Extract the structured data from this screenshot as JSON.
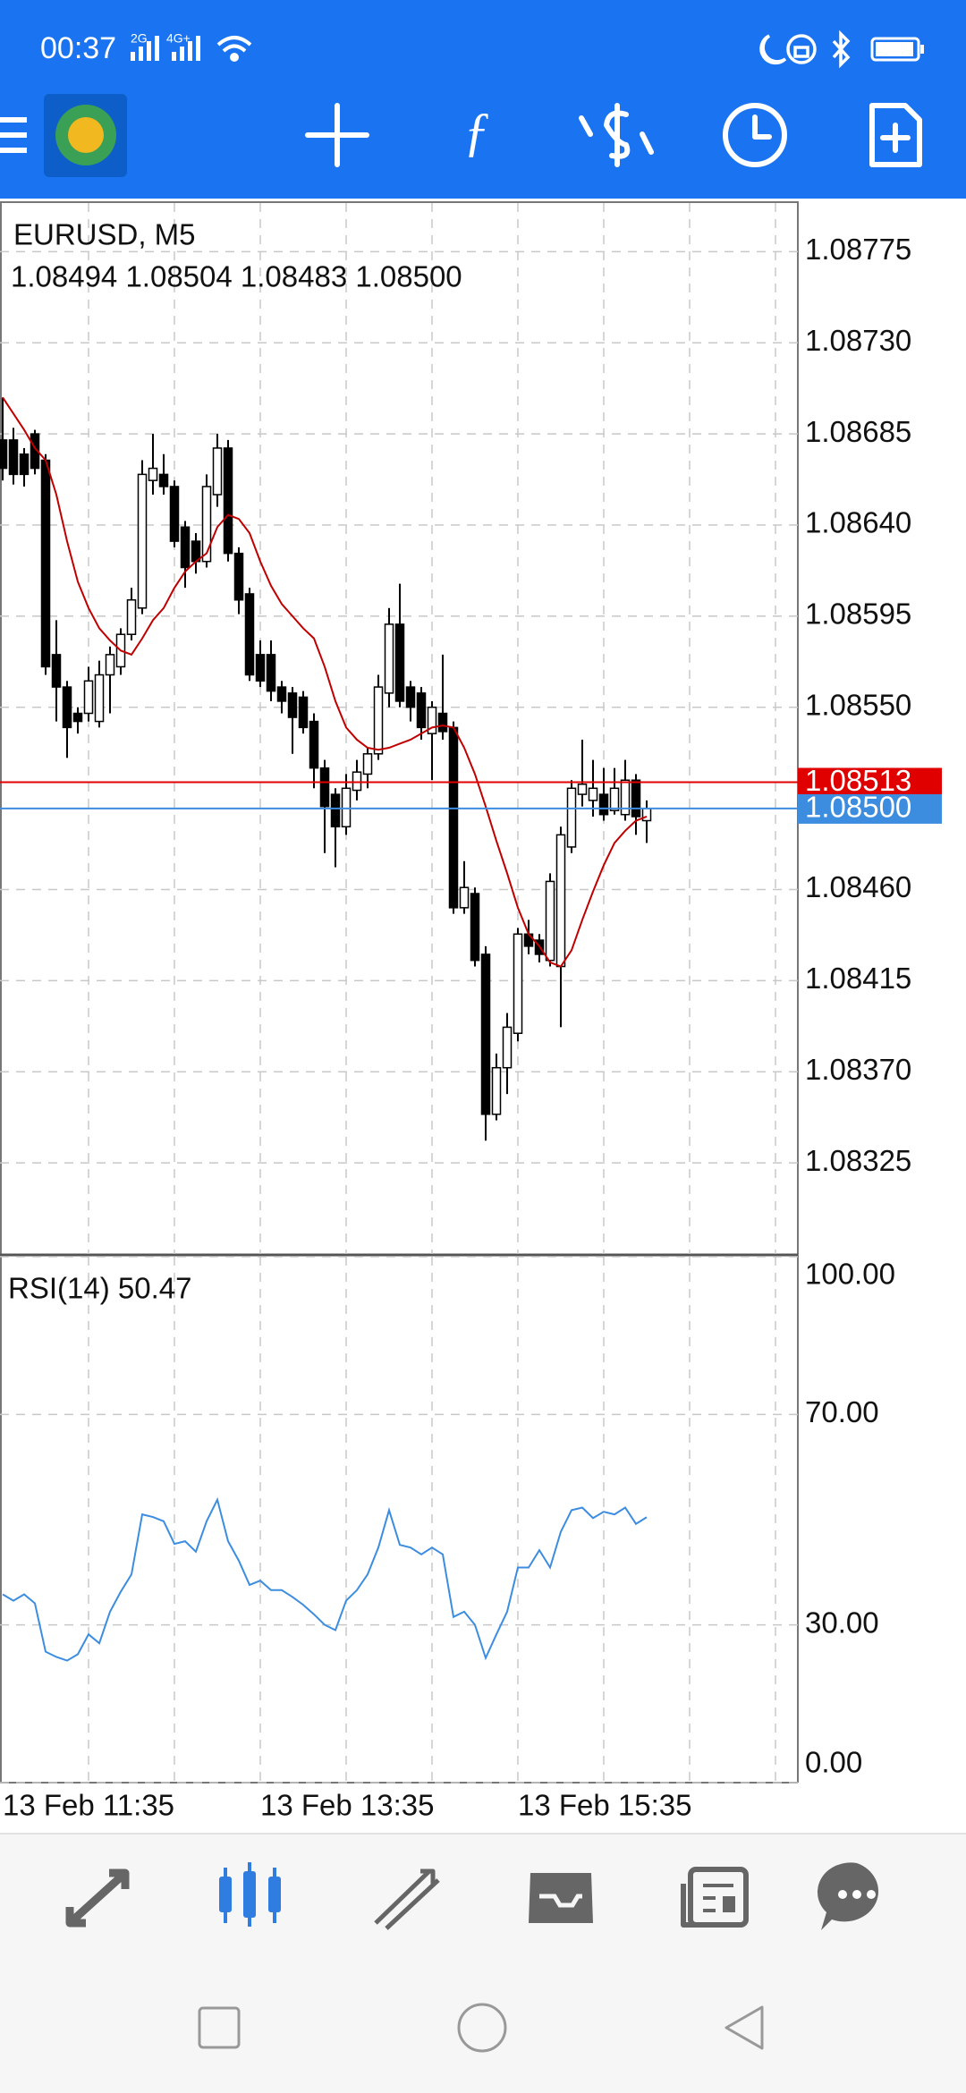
{
  "status_bar": {
    "time": "00:37",
    "net1": "2G",
    "net2": "4G+"
  },
  "chart_data": [
    {
      "type": "candlestick",
      "title": "EURUSD, M5",
      "subtitle": "1.08494 1.08504 1.08483 1.08500",
      "ylim": [
        1.0828,
        1.08799
      ],
      "yticks": [
        1.08775,
        {
          "value": 1.0873,
          "label": "1.08730"
        },
        1.08685,
        {
          "value": 1.0864,
          "label": "1.08640"
        },
        1.08595,
        {
          "value": 1.0855,
          "label": "1.08550"
        },
        {
          "value": 1.0846,
          "label": "1.08460"
        },
        1.08415,
        {
          "value": 1.0837,
          "label": "1.08370"
        },
        1.08325
      ],
      "grid": true,
      "up_color": "#ffffff",
      "down_color": "#000000",
      "open": [
        1.08682,
        1.08682,
        1.08675,
        1.08685,
        1.08672,
        1.08576,
        1.0856,
        1.08547,
        1.08547,
        1.08543,
        1.08566,
        1.0857,
        1.08586,
        1.08599,
        1.08662,
        1.08665,
        1.08659,
        1.08639,
        1.08632,
        1.08622,
        1.08655,
        1.08678,
        1.08626,
        1.08606,
        1.08576,
        1.08576,
        1.0856,
        1.08557,
        1.08555,
        1.08543,
        1.0852,
        1.08507,
        1.08491,
        1.08509,
        1.08517,
        1.08527,
        1.08557,
        1.08591,
        1.0856,
        1.08557,
        1.08537,
        1.08547,
        1.0854,
        1.08451,
        1.08458,
        1.08428,
        1.08349,
        1.08372,
        1.08389,
        1.08438,
        1.08435,
        1.08425,
        1.08422,
        1.08481,
        1.08507,
        1.08504,
        1.08507,
        1.08499,
        1.08497,
        1.08514,
        1.08494
      ],
      "high": [
        1.08703,
        1.08688,
        1.08678,
        1.08687,
        1.08675,
        1.08593,
        1.08563,
        1.0855,
        1.0857,
        1.08573,
        1.0858,
        1.08589,
        1.08609,
        1.08672,
        1.08685,
        1.08675,
        1.08662,
        1.08642,
        1.08636,
        1.08665,
        1.08685,
        1.08682,
        1.08629,
        1.08609,
        1.08583,
        1.08583,
        1.08563,
        1.0856,
        1.08558,
        1.08547,
        1.08524,
        1.0851,
        1.08517,
        1.08524,
        1.0853,
        1.08566,
        1.08599,
        1.08611,
        1.08563,
        1.0856,
        1.08553,
        1.08576,
        1.08543,
        1.08474,
        1.08461,
        1.08432,
        1.08379,
        1.08399,
        1.08441,
        1.08445,
        1.08438,
        1.08468,
        1.08491,
        1.08514,
        1.08534,
        1.08524,
        1.0852,
        1.0852,
        1.08524,
        1.08517,
        1.08504
      ],
      "low": [
        1.08662,
        1.0866,
        1.08659,
        1.08665,
        1.08566,
        1.08543,
        1.08525,
        1.08537,
        1.08543,
        1.0854,
        1.08547,
        1.08566,
        1.08583,
        1.08596,
        1.08655,
        1.08655,
        1.08629,
        1.08609,
        1.08616,
        1.08619,
        1.08649,
        1.08622,
        1.08596,
        1.08563,
        1.0856,
        1.08553,
        1.08547,
        1.08527,
        1.08537,
        1.0851,
        1.08478,
        1.08471,
        1.08487,
        1.08504,
        1.0851,
        1.08524,
        1.0855,
        1.0855,
        1.08543,
        1.08534,
        1.08514,
        1.08534,
        1.08448,
        1.08448,
        1.08422,
        1.08336,
        1.08346,
        1.08359,
        1.08385,
        1.08428,
        1.08424,
        1.08422,
        1.08392,
        1.08478,
        1.08501,
        1.08496,
        1.08494,
        1.08497,
        1.08494,
        1.08487,
        1.08483
      ],
      "close": [
        1.08668,
        1.08665,
        1.08665,
        1.08668,
        1.0857,
        1.0856,
        1.0854,
        1.08543,
        1.08563,
        1.08566,
        1.08576,
        1.08586,
        1.08603,
        1.08665,
        1.08668,
        1.08659,
        1.08632,
        1.08619,
        1.08622,
        1.08659,
        1.08678,
        1.08626,
        1.08603,
        1.08566,
        1.08563,
        1.08558,
        1.08553,
        1.08545,
        1.0854,
        1.0852,
        1.08501,
        1.08491,
        1.0851,
        1.08518,
        1.08527,
        1.0856,
        1.08591,
        1.08553,
        1.0855,
        1.0854,
        1.0855,
        1.08538,
        1.08451,
        1.08461,
        1.08425,
        1.08349,
        1.08372,
        1.08392,
        1.08438,
        1.08432,
        1.08428,
        1.08464,
        1.08487,
        1.0851,
        1.08512,
        1.0851,
        1.08497,
        1.0851,
        1.08514,
        1.08496,
        1.085
      ],
      "ma": {
        "color": "#c00000",
        "values": [
          1.08703,
          1.08695,
          1.08687,
          1.08678,
          1.08672,
          1.08655,
          1.08632,
          1.08612,
          1.08599,
          1.08589,
          1.08583,
          1.08578,
          1.08576,
          1.08584,
          1.08593,
          1.08599,
          1.08609,
          1.08617,
          1.08622,
          1.08626,
          1.08639,
          1.08645,
          1.08643,
          1.08636,
          1.08622,
          1.0861,
          1.08601,
          1.08595,
          1.08589,
          1.08584,
          1.0857,
          1.08553,
          1.0854,
          1.08534,
          1.0853,
          1.08529,
          1.0853,
          1.08532,
          1.08534,
          1.08537,
          1.0854,
          1.08541,
          1.0854,
          1.0853,
          1.08517,
          1.08501,
          1.08484,
          1.08468,
          1.08451,
          1.08438,
          1.08432,
          1.08424,
          1.08422,
          1.0843,
          1.08445,
          1.08459,
          1.08472,
          1.08483,
          1.08489,
          1.08494,
          1.08496
        ]
      },
      "price_lines": [
        {
          "value": 1.08513,
          "color": "#e00000"
        },
        {
          "value": 1.085,
          "label": "1.08500",
          "color": "#3c8de0"
        }
      ]
    },
    {
      "type": "line",
      "title": "RSI(14) 50.47",
      "color": "#3c8de0",
      "ylim": [
        0,
        100
      ],
      "yticks": [
        {
          "value": 100,
          "label": "100.00"
        },
        {
          "value": 70,
          "label": "70.00"
        },
        {
          "value": 30,
          "label": "30.00"
        },
        {
          "value": 0,
          "label": "0.00"
        }
      ],
      "grid": true,
      "categories": [
        "13 Feb 11:35",
        null,
        null,
        null,
        null,
        null,
        null,
        null,
        null,
        null,
        null,
        null,
        null,
        null,
        null,
        null,
        null,
        null,
        null,
        null,
        null,
        null,
        null,
        null,
        "13 Feb 13:35",
        null,
        null,
        null,
        null,
        null,
        null,
        null,
        null,
        null,
        null,
        null,
        null,
        null,
        null,
        null,
        null,
        null,
        null,
        null,
        null,
        null,
        null,
        null,
        "13 Feb 15:35",
        null,
        null,
        null,
        null,
        null,
        null,
        null,
        null,
        null,
        null,
        null,
        null
      ],
      "values": [
        35.8,
        34.6,
        35.8,
        34.1,
        24.9,
        23.9,
        23.2,
        24.4,
        28.2,
        26.5,
        32.5,
        36.3,
        39.6,
        51,
        50.5,
        49.7,
        45.4,
        45.9,
        43.9,
        49.7,
        53.8,
        45.9,
        42.2,
        37.6,
        38.4,
        36.6,
        36.6,
        35.3,
        33.8,
        32,
        30,
        29,
        34.6,
        36.6,
        39.6,
        44.7,
        51.8,
        45.2,
        44.7,
        43.4,
        44.7,
        43.4,
        31.5,
        32.5,
        30,
        23.7,
        28.2,
        32.5,
        40.9,
        40.9,
        44.2,
        40.9,
        47.7,
        51.8,
        52.3,
        50.3,
        51.5,
        51,
        52.3,
        49.2,
        50.47
      ]
    }
  ]
}
